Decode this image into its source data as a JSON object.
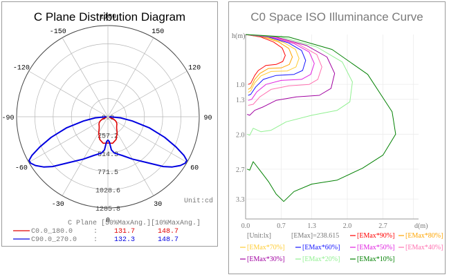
{
  "left": {
    "title": "C Plane Distribution Diagram",
    "unit_label": "Unit:cd",
    "angle_labels": [
      {
        "deg": 180,
        "text": "±180"
      },
      {
        "deg": -150,
        "text": "-150"
      },
      {
        "deg": 150,
        "text": "150"
      },
      {
        "deg": -120,
        "text": "-120"
      },
      {
        "deg": 120,
        "text": "120"
      },
      {
        "deg": -90,
        "text": "-90"
      },
      {
        "deg": 90,
        "text": "90"
      },
      {
        "deg": -60,
        "text": "-60"
      },
      {
        "deg": 60,
        "text": "60"
      },
      {
        "deg": -30,
        "text": "-30"
      },
      {
        "deg": 30,
        "text": "30"
      },
      {
        "deg": 0,
        "text": "0"
      }
    ],
    "radial_labels": [
      "0.0",
      "257.2",
      "514.3",
      "771.5",
      "1028.6",
      "1285.8"
    ],
    "legend_header": "C Plane   [50%MaxAng.][10%MaxAng.]",
    "legend_rows": [
      {
        "name": "C0.0_180.0",
        "sep": ":",
        "v50": "131.7",
        "v10": "148.7",
        "color": "#e00000"
      },
      {
        "name": "C90.0_270.0",
        "sep": ":",
        "v50": "132.3",
        "v10": "148.7",
        "color": "#0000e0"
      }
    ]
  },
  "right": {
    "title": "C0 Space ISO Illuminance Curve",
    "y_axis_label": "h(m)",
    "x_axis_label": "d(m)",
    "y_ticks": [
      "1.0",
      "1.3",
      "2.0",
      "2.7",
      "3.3"
    ],
    "x_ticks": [
      "0.0",
      "0.7",
      "1.3",
      "2.0",
      "2.7"
    ],
    "info_unit": "[Unit:lx]",
    "info_emax": "[EMax]=238.615",
    "legend": [
      {
        "label": "[EMax*90%]",
        "color": "#ff0000"
      },
      {
        "label": "[EMax*80%]",
        "color": "#ffa500"
      },
      {
        "label": "[EMax*70%]",
        "color": "#ffcc33"
      },
      {
        "label": "[EMax*60%]",
        "color": "#1414ff"
      },
      {
        "label": "[EMax*50%]",
        "color": "#e020e0"
      },
      {
        "label": "[EMax*40%]",
        "color": "#ff70b0"
      },
      {
        "label": "[EMax*30%]",
        "color": "#a000a0"
      },
      {
        "label": "[EMax*20%]",
        "color": "#90f090"
      },
      {
        "label": "[EMax*10%]",
        "color": "#008000"
      }
    ]
  },
  "chart_data": [
    {
      "type": "polar",
      "title": "C Plane Distribution Diagram",
      "unit": "cd",
      "r_max": 1285.8,
      "r_ticks": [
        0.0,
        257.2,
        514.3,
        771.5,
        1028.6,
        1285.8
      ],
      "series": [
        {
          "name": "C0.0_180.0",
          "color": "#e00000",
          "points": [
            [
              0,
              370
            ],
            [
              10,
              380
            ],
            [
              20,
              340
            ],
            [
              30,
              260
            ],
            [
              38,
              200
            ],
            [
              45,
              175
            ],
            [
              50,
              165
            ],
            [
              55,
              150
            ],
            [
              60,
              130
            ],
            [
              65,
              100
            ],
            [
              68,
              70
            ],
            [
              70,
              20
            ]
          ]
        },
        {
          "name": "C90.0_270.0",
          "color": "#0000e0",
          "points": [
            [
              0,
              330
            ],
            [
              3,
              350
            ],
            [
              6,
              470
            ],
            [
              10,
              520
            ],
            [
              20,
              580
            ],
            [
              30,
              690
            ],
            [
              40,
              840
            ],
            [
              48,
              1050
            ],
            [
              52,
              1150
            ],
            [
              56,
              1230
            ],
            [
              59,
              1270
            ],
            [
              61,
              1270
            ],
            [
              63,
              1200
            ],
            [
              66,
              1050
            ],
            [
              70,
              850
            ],
            [
              75,
              600
            ],
            [
              80,
              350
            ],
            [
              85,
              180
            ],
            [
              90,
              20
            ]
          ]
        }
      ]
    },
    {
      "type": "line",
      "title": "C0 Space ISO Illuminance Curve",
      "xlabel": "d(m)",
      "ylabel": "h(m)",
      "xlim": [
        0,
        3.4
      ],
      "ylim": [
        0,
        3.7
      ],
      "emax": 238.615,
      "unit": "lx",
      "series": [
        {
          "name": "[EMax*90%]",
          "color": "#ff0000",
          "points": [
            [
              0.0,
              0.0
            ],
            [
              0.3,
              0.05
            ],
            [
              0.55,
              0.15
            ],
            [
              0.72,
              0.27
            ],
            [
              0.78,
              0.42
            ],
            [
              0.73,
              0.54
            ],
            [
              0.6,
              0.6
            ],
            [
              0.4,
              0.62
            ],
            [
              0.25,
              0.72
            ],
            [
              0.18,
              0.82
            ],
            [
              0.1,
              0.98
            ],
            [
              0.05,
              1.0
            ]
          ]
        },
        {
          "name": "[EMax*80%]",
          "color": "#ffa500",
          "points": [
            [
              0.0,
              0.0
            ],
            [
              0.35,
              0.05
            ],
            [
              0.65,
              0.15
            ],
            [
              0.85,
              0.28
            ],
            [
              0.92,
              0.45
            ],
            [
              0.86,
              0.6
            ],
            [
              0.7,
              0.67
            ],
            [
              0.45,
              0.68
            ],
            [
              0.28,
              0.78
            ],
            [
              0.18,
              0.9
            ],
            [
              0.1,
              1.07
            ],
            [
              0.05,
              1.1
            ]
          ]
        },
        {
          "name": "[EMax*70%]",
          "color": "#ffcc33",
          "points": [
            [
              0.0,
              0.0
            ],
            [
              0.4,
              0.05
            ],
            [
              0.75,
              0.16
            ],
            [
              0.98,
              0.3
            ],
            [
              1.05,
              0.48
            ],
            [
              0.99,
              0.65
            ],
            [
              0.82,
              0.73
            ],
            [
              0.5,
              0.74
            ],
            [
              0.3,
              0.83
            ],
            [
              0.18,
              0.97
            ],
            [
              0.1,
              1.13
            ],
            [
              0.05,
              1.16
            ]
          ]
        },
        {
          "name": "[EMax*60%]",
          "color": "#1414ff",
          "points": [
            [
              0.0,
              0.0
            ],
            [
              0.45,
              0.05
            ],
            [
              0.85,
              0.17
            ],
            [
              1.1,
              0.32
            ],
            [
              1.18,
              0.52
            ],
            [
              1.12,
              0.72
            ],
            [
              0.95,
              0.8
            ],
            [
              0.6,
              0.82
            ],
            [
              0.35,
              0.9
            ],
            [
              0.2,
              1.05
            ],
            [
              0.1,
              1.2
            ],
            [
              0.05,
              1.22
            ]
          ]
        },
        {
          "name": "[EMax*50%]",
          "color": "#e020e0",
          "points": [
            [
              0.0,
              0.0
            ],
            [
              0.5,
              0.05
            ],
            [
              0.95,
              0.18
            ],
            [
              1.25,
              0.35
            ],
            [
              1.35,
              0.58
            ],
            [
              1.28,
              0.8
            ],
            [
              1.1,
              0.9
            ],
            [
              0.7,
              0.92
            ],
            [
              0.4,
              1.0
            ],
            [
              0.22,
              1.15
            ],
            [
              0.12,
              1.3
            ],
            [
              0.05,
              1.32
            ]
          ]
        },
        {
          "name": "[EMax*40%]",
          "color": "#ff70b0",
          "points": [
            [
              0.0,
              0.0
            ],
            [
              0.55,
              0.05
            ],
            [
              1.05,
              0.2
            ],
            [
              1.4,
              0.4
            ],
            [
              1.5,
              0.65
            ],
            [
              1.42,
              0.9
            ],
            [
              1.25,
              1.0
            ],
            [
              0.85,
              1.03
            ],
            [
              0.5,
              1.1
            ],
            [
              0.28,
              1.25
            ],
            [
              0.15,
              1.4
            ],
            [
              0.05,
              1.42
            ]
          ]
        },
        {
          "name": "[EMax*30%]",
          "color": "#a000a0",
          "points": [
            [
              0.0,
              0.0
            ],
            [
              0.6,
              0.05
            ],
            [
              1.2,
              0.22
            ],
            [
              1.6,
              0.45
            ],
            [
              1.75,
              0.78
            ],
            [
              1.68,
              1.08
            ],
            [
              1.45,
              1.22
            ],
            [
              1.0,
              1.25
            ],
            [
              0.6,
              1.32
            ],
            [
              0.35,
              1.45
            ],
            [
              0.18,
              1.52
            ],
            [
              0.08,
              1.62
            ],
            [
              0.03,
              1.6
            ]
          ]
        },
        {
          "name": "[EMax*20%]",
          "color": "#90f090",
          "points": [
            [
              0.0,
              0.0
            ],
            [
              0.7,
              0.05
            ],
            [
              1.4,
              0.25
            ],
            [
              1.9,
              0.55
            ],
            [
              2.1,
              0.95
            ],
            [
              2.05,
              1.35
            ],
            [
              1.8,
              1.52
            ],
            [
              1.3,
              1.62
            ],
            [
              0.8,
              1.75
            ],
            [
              0.5,
              1.92
            ],
            [
              0.3,
              1.95
            ],
            [
              0.15,
              1.88
            ],
            [
              0.08,
              2.02
            ],
            [
              0.03,
              2.0
            ]
          ]
        },
        {
          "name": "[EMax*10%]",
          "color": "#008000",
          "points": [
            [
              0.0,
              0.0
            ],
            [
              0.85,
              0.05
            ],
            [
              1.7,
              0.3
            ],
            [
              2.4,
              0.8
            ],
            [
              2.88,
              1.55
            ],
            [
              2.95,
              2.0
            ],
            [
              2.7,
              2.42
            ],
            [
              2.3,
              2.68
            ],
            [
              1.8,
              2.92
            ],
            [
              1.3,
              3.0
            ],
            [
              0.95,
              3.15
            ],
            [
              0.75,
              3.35
            ],
            [
              0.6,
              3.2
            ],
            [
              0.45,
              2.95
            ],
            [
              0.3,
              2.75
            ],
            [
              0.15,
              2.55
            ],
            [
              0.08,
              2.72
            ],
            [
              0.03,
              2.7
            ]
          ]
        }
      ]
    }
  ]
}
